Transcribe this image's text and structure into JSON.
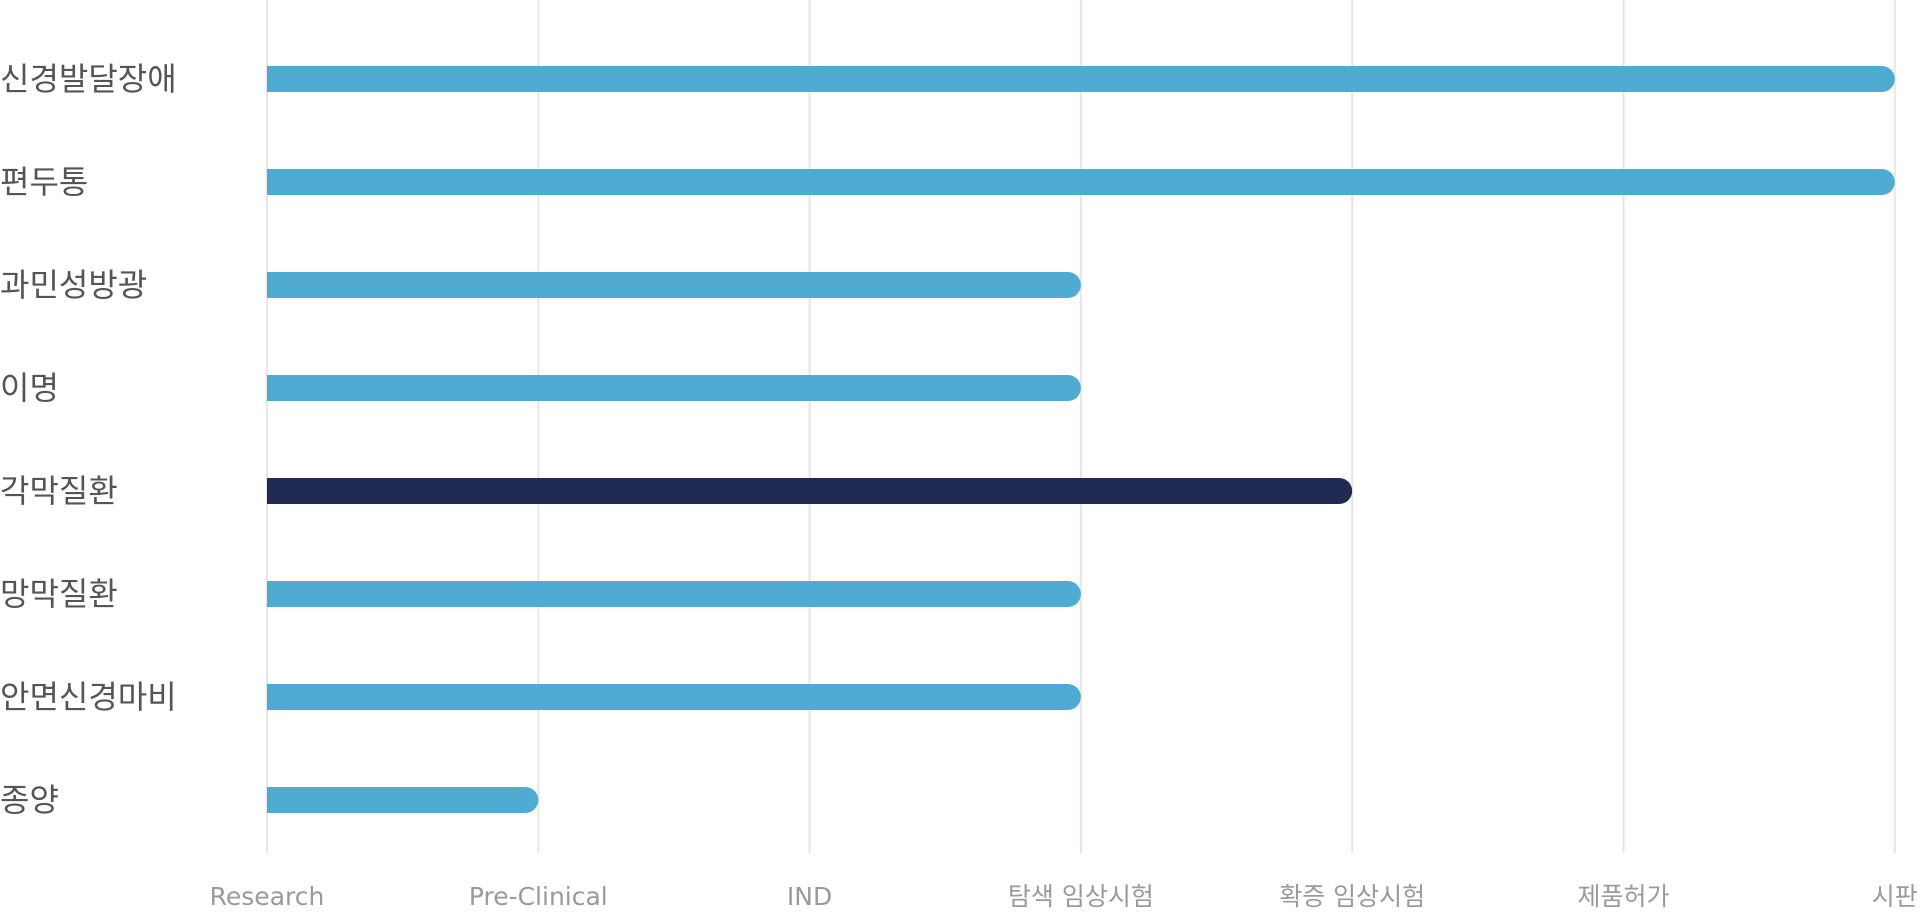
{
  "chart_data": {
    "type": "bar",
    "orientation": "horizontal",
    "x_ticks": [
      "Research",
      "Pre-Clinical",
      "IND",
      "탐색 임상시험",
      "확증 임상시험",
      "제품허가",
      "시판"
    ],
    "categories": [
      "신경발달장애",
      "편두통",
      "과민성방광",
      "이명",
      "각막질환",
      "망막질환",
      "안면신경마비",
      "종양"
    ],
    "values": [
      6,
      6,
      3,
      3,
      4,
      3,
      3,
      1
    ],
    "highlight_index": 4,
    "xlim": [
      0,
      6
    ],
    "grid": true,
    "colors": {
      "default": "#4fabd1",
      "highlight": "#202a52",
      "grid": "#e6e6e6"
    }
  }
}
